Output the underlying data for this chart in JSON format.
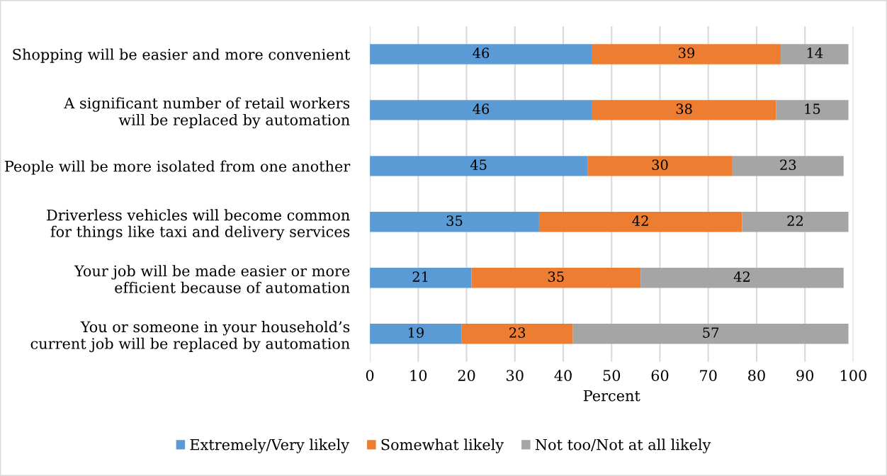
{
  "chart_data": {
    "type": "bar",
    "orientation": "horizontal",
    "stacked": true,
    "data_labels": true,
    "categories": [
      "Shopping will be easier and more convenient",
      "A significant number of retail workers\nwill be replaced by automation",
      "People will be more isolated from one another",
      "Driverless vehicles will become common\nfor things like taxi and delivery services",
      "Your job will be made easier or more\nefficient because of automation",
      "You or someone in your household’s\ncurrent job will be replaced by automation"
    ],
    "series": [
      {
        "name": "Extremely/Very likely",
        "color": "#5b9bd5",
        "values": [
          46,
          46,
          45,
          35,
          21,
          19
        ]
      },
      {
        "name": "Somewhat likely",
        "color": "#ed7d31",
        "values": [
          39,
          38,
          30,
          42,
          35,
          23
        ]
      },
      {
        "name": "Not too/Not at all likely",
        "color": "#a5a5a5",
        "values": [
          14,
          15,
          23,
          22,
          42,
          57
        ]
      }
    ],
    "xlabel": "Percent",
    "xlim": [
      0,
      100
    ],
    "xticks": [
      0,
      10,
      20,
      30,
      40,
      50,
      60,
      70,
      80,
      90,
      100
    ],
    "grid": "x",
    "legend": "bottom"
  }
}
